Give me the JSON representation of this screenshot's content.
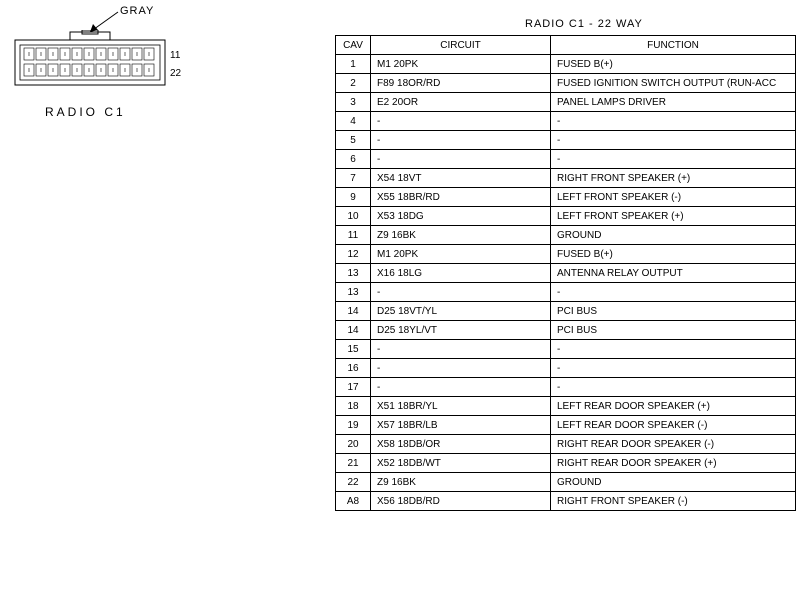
{
  "diagram": {
    "gray_label": "GRAY",
    "pin_label_right_top": "11",
    "pin_label_right_bottom": "22",
    "caption": "RADIO C1",
    "connector_color": "#ffffff",
    "connector_stroke": "#000000"
  },
  "table": {
    "title": "RADIO C1 - 22 WAY",
    "headers": {
      "cav": "CAV",
      "circuit": "CIRCUIT",
      "function": "FUNCTION"
    },
    "rows": [
      {
        "cav": "1",
        "circuit": "M1 20PK",
        "function": "FUSED B(+)"
      },
      {
        "cav": "2",
        "circuit": "F89 18OR/RD",
        "function": "FUSED IGNITION SWITCH OUTPUT (RUN-ACC"
      },
      {
        "cav": "3",
        "circuit": "E2 20OR",
        "function": "PANEL LAMPS DRIVER"
      },
      {
        "cav": "4",
        "circuit": "-",
        "function": "-"
      },
      {
        "cav": "5",
        "circuit": "-",
        "function": "-"
      },
      {
        "cav": "6",
        "circuit": "-",
        "function": "-"
      },
      {
        "cav": "7",
        "circuit": "X54 18VT",
        "function": "RIGHT FRONT SPEAKER (+)"
      },
      {
        "cav": "9",
        "circuit": "X55 18BR/RD",
        "function": "LEFT FRONT SPEAKER (-)"
      },
      {
        "cav": "10",
        "circuit": "X53 18DG",
        "function": "LEFT FRONT SPEAKER (+)"
      },
      {
        "cav": "11",
        "circuit": "Z9 16BK",
        "function": "GROUND"
      },
      {
        "cav": "12",
        "circuit": "M1 20PK",
        "function": "FUSED B(+)"
      },
      {
        "cav": "13",
        "circuit": "X16 18LG",
        "function": "ANTENNA RELAY OUTPUT"
      },
      {
        "cav": "13",
        "circuit": "-",
        "function": "-"
      },
      {
        "cav": "14",
        "circuit": "D25 18VT/YL",
        "function": "PCI BUS"
      },
      {
        "cav": "14",
        "circuit": "D25 18YL/VT",
        "function": "PCI BUS"
      },
      {
        "cav": "15",
        "circuit": "-",
        "function": "-"
      },
      {
        "cav": "16",
        "circuit": "-",
        "function": "-"
      },
      {
        "cav": "17",
        "circuit": "-",
        "function": "-"
      },
      {
        "cav": "18",
        "circuit": "X51 18BR/YL",
        "function": "LEFT REAR DOOR SPEAKER (+)"
      },
      {
        "cav": "19",
        "circuit": "X57 18BR/LB",
        "function": "LEFT REAR DOOR SPEAKER (-)"
      },
      {
        "cav": "20",
        "circuit": "X58 18DB/OR",
        "function": "RIGHT REAR DOOR SPEAKER (-)"
      },
      {
        "cav": "21",
        "circuit": "X52 18DB/WT",
        "function": "RIGHT REAR DOOR SPEAKER (+)"
      },
      {
        "cav": "22",
        "circuit": "Z9 16BK",
        "function": "GROUND"
      },
      {
        "cav": "A8",
        "circuit": "X56 18DB/RD",
        "function": "RIGHT FRONT SPEAKER (-)"
      }
    ],
    "border_color": "#000000",
    "font_size": 10
  }
}
